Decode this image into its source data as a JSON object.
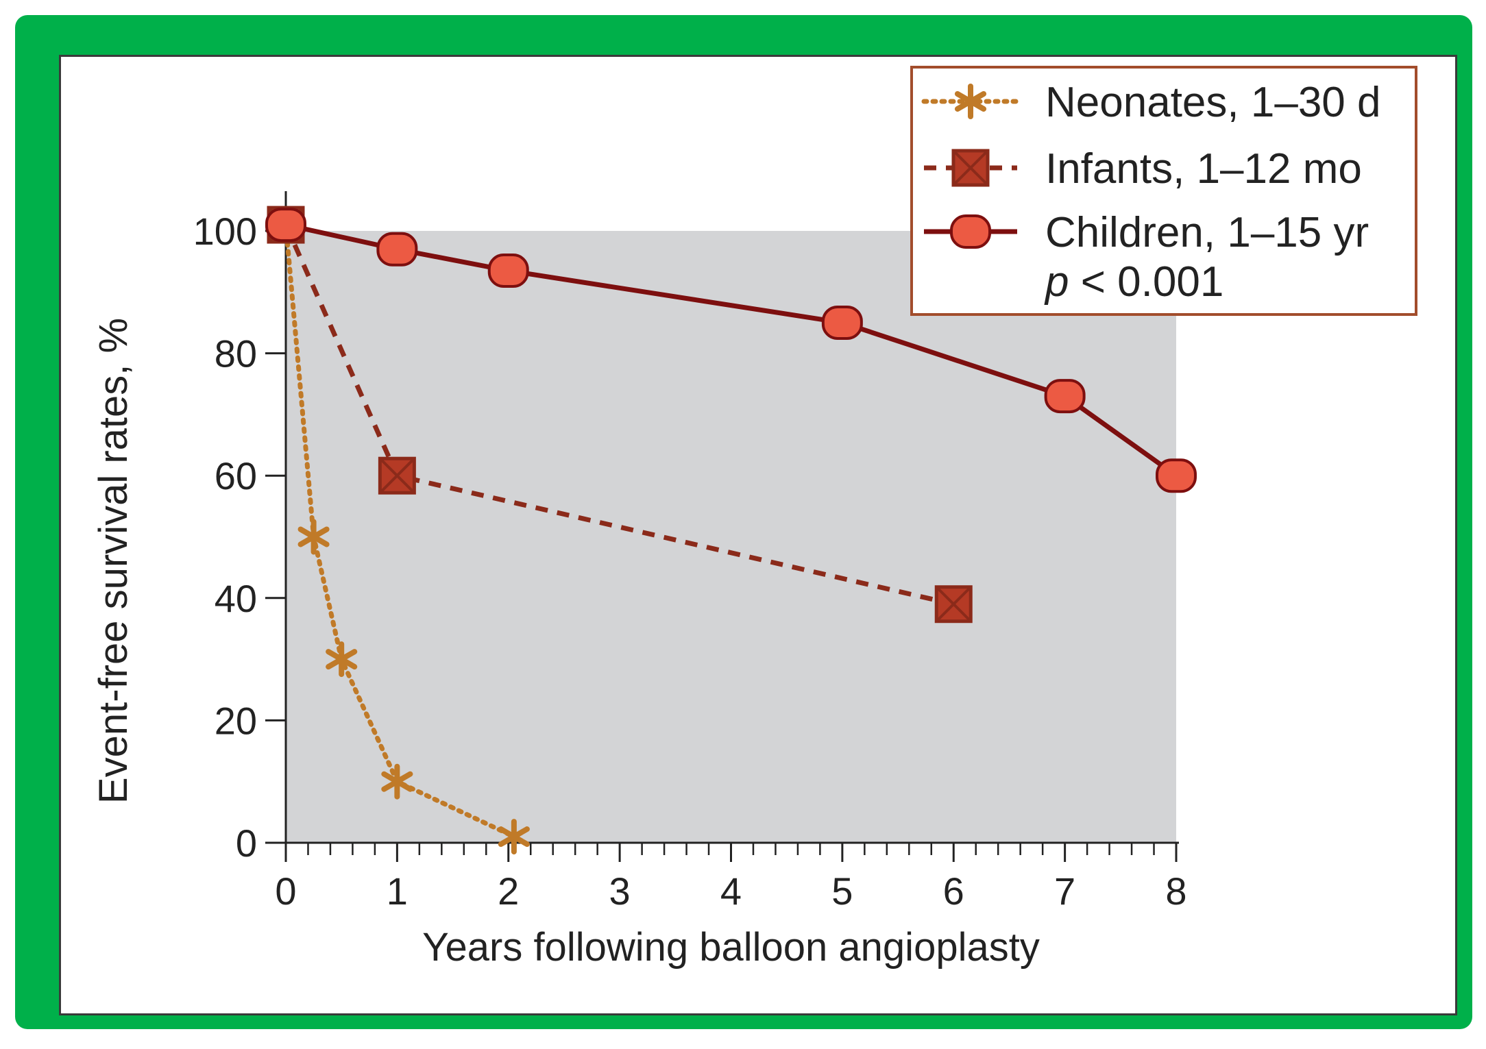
{
  "colors": {
    "frame": "#00b04a",
    "plot_background": "#d3d4d6",
    "neonates": "#c07a28",
    "infants": "#8b2a1a",
    "infants_marker_fill": "#b53a25",
    "children": "#7d0f0f",
    "children_marker_fill": "#ec5a43",
    "legend_border": "#a24d2c",
    "axis": "#222222"
  },
  "chart_data": {
    "type": "line",
    "title": "",
    "xlabel": "Years following balloon angioplasty",
    "ylabel": "Event-free survival rates, %",
    "xlim": [
      0,
      8
    ],
    "ylim": [
      0,
      100
    ],
    "x_ticks": [
      0,
      1,
      2,
      3,
      4,
      5,
      6,
      7,
      8
    ],
    "x_tick_labels": [
      "0",
      "1",
      "2",
      "3",
      "4",
      "5",
      "6",
      "7",
      "8"
    ],
    "y_ticks": [
      0,
      20,
      40,
      60,
      80,
      100
    ],
    "y_tick_labels": [
      "0",
      "20",
      "40",
      "60",
      "80",
      "100"
    ],
    "x_minor_step": 0.2,
    "shaded_region": {
      "x": [
        0,
        8
      ],
      "y": [
        0,
        100
      ]
    },
    "series": [
      {
        "name": "Neonates, 1–30 d",
        "line_style": "dotted",
        "marker": "asterisk",
        "color_key": "neonates",
        "points": [
          [
            0,
            101
          ],
          [
            0.25,
            50
          ],
          [
            0.5,
            30
          ],
          [
            1,
            10
          ],
          [
            2.05,
            1
          ]
        ]
      },
      {
        "name": "Infants, 1–12 mo",
        "line_style": "dashed",
        "marker": "crossed-square",
        "color_key": "infants",
        "points": [
          [
            0,
            101
          ],
          [
            1,
            60
          ],
          [
            6,
            39
          ]
        ]
      },
      {
        "name": "Children, 1–15 yr",
        "line_style": "solid",
        "marker": "rounded-box",
        "color_key": "children",
        "points": [
          [
            0,
            101
          ],
          [
            1,
            97
          ],
          [
            2,
            93.5
          ],
          [
            5,
            85
          ],
          [
            7,
            73
          ],
          [
            8,
            60
          ]
        ]
      }
    ],
    "legend": {
      "placement": "top-right",
      "entries": [
        "Neonates, 1–30 d",
        "Infants, 1–12 mo",
        "Children, 1–15 yr"
      ],
      "annotation_prefix": "p",
      "annotation_rest": " < 0.001"
    }
  }
}
